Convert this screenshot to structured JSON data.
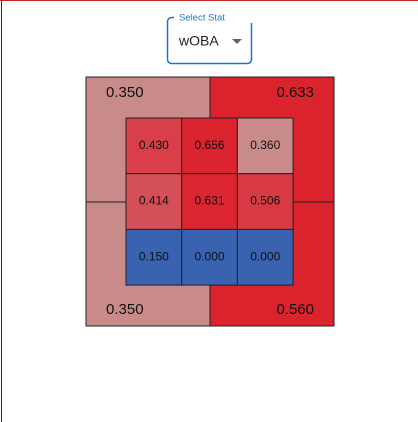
{
  "select": {
    "label": "Select Stat",
    "value": "wOBA"
  },
  "outer_zones": [
    {
      "value": "0.350",
      "color": "#c98a8a"
    },
    {
      "value": "0.633",
      "color": "#da232d"
    },
    {
      "value": "0.350",
      "color": "#c98a8a"
    },
    {
      "value": "0.560",
      "color": "#da232d"
    }
  ],
  "inner_zones": [
    [
      {
        "value": "0.430",
        "color": "#d83f48"
      },
      {
        "value": "0.656",
        "color": "#db2430"
      },
      {
        "value": "0.360",
        "color": "#c98a8a"
      }
    ],
    [
      {
        "value": "0.414",
        "color": "#d54f58"
      },
      {
        "value": "0.631",
        "color": "#db2530"
      },
      {
        "value": "0.506",
        "color": "#d83a43"
      }
    ],
    [
      {
        "value": "0.150",
        "color": "#3962b1"
      },
      {
        "value": "0.000",
        "color": "#3962b1"
      },
      {
        "value": "0.000",
        "color": "#3962b1"
      }
    ]
  ]
}
